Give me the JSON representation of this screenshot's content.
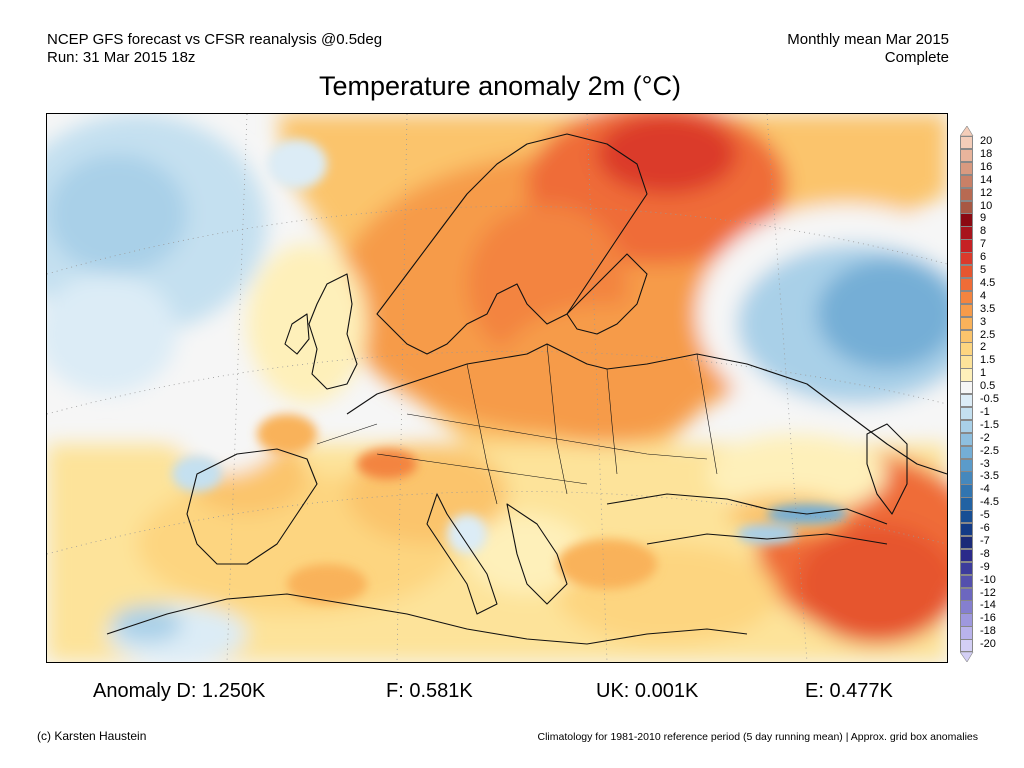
{
  "header": {
    "line1_left": "NCEP GFS forecast vs CFSR reanalysis @0.5deg",
    "line2_left": "Run: 31 Mar 2015 18z",
    "line1_right": "Monthly mean Mar 2015",
    "line2_right": "Complete"
  },
  "title": "Temperature anomaly 2m (°C)",
  "colorbar": {
    "labels": [
      "20",
      "18",
      "16",
      "14",
      "12",
      "10",
      "9",
      "8",
      "7",
      "6",
      "5",
      "4.5",
      "4",
      "3.5",
      "3",
      "2.5",
      "2",
      "1.5",
      "1",
      "0.5",
      "-0.5",
      "-1",
      "-1.5",
      "-2",
      "-2.5",
      "-3",
      "-3.5",
      "-4",
      "-4.5",
      "-5",
      "-6",
      "-7",
      "-8",
      "-9",
      "-10",
      "-12",
      "-14",
      "-16",
      "-18",
      "-20"
    ],
    "colors": [
      "#f4cdb9",
      "#e8b49c",
      "#d99a80",
      "#c98067",
      "#b86a52",
      "#a85843",
      "#8b0a12",
      "#a8141c",
      "#c62124",
      "#db3a2c",
      "#e6552f",
      "#ef6c37",
      "#f3843f",
      "#f69b4a",
      "#f9b25a",
      "#fbc46c",
      "#fdd580",
      "#fde39a",
      "#fef0ba",
      "#f6f6f6",
      "#dcecf6",
      "#c4e0f0",
      "#a9d0e8",
      "#8ebfdf",
      "#74aed6",
      "#5b9bca",
      "#4588bd",
      "#3275b0",
      "#2262a3",
      "#174e94",
      "#133b86",
      "#1a2a78",
      "#2b2a8a",
      "#3d3c9c",
      "#5450ad",
      "#6c67bf",
      "#857fcf",
      "#9e98de",
      "#b9b3ec",
      "#d3cff5"
    ]
  },
  "stats": {
    "d": "Anomaly D: 1.250K",
    "f": "F: 0.581K",
    "uk": "UK: 0.001K",
    "e": "E: 0.477K"
  },
  "footer": {
    "credit": "(c) Karsten Haustein",
    "note": "Climatology for 1981-2010 reference period (5 day running mean) | Approx. grid box anomalies"
  }
}
